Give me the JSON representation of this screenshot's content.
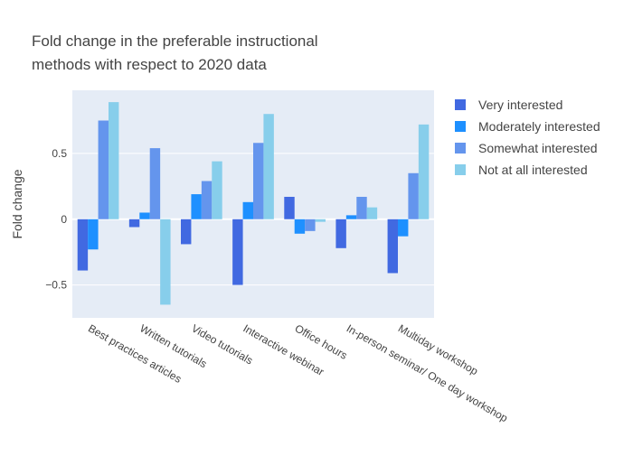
{
  "chart_data": {
    "type": "bar",
    "title_lines": [
      "Fold change in the preferable instructional",
      "methods with respect to 2020 data"
    ],
    "xlabel": "",
    "ylabel": "Fold change",
    "ylim": [
      -0.75,
      0.98
    ],
    "yticks": [
      -0.5,
      0,
      0.5
    ],
    "ytick_labels": [
      "−0.5",
      "0",
      "0.5"
    ],
    "grid": true,
    "legend_position": "top-right",
    "categories": [
      "Best practices articles",
      "Written tutorials",
      "Video tutorials",
      "Interactive webinar",
      "Office hours",
      "In-person seminar/ One day workshop",
      "Multiday workshop"
    ],
    "series": [
      {
        "name": "Very interested",
        "color": "#4169E1",
        "values": [
          -0.39,
          -0.06,
          -0.19,
          -0.5,
          0.17,
          -0.22,
          -0.41
        ]
      },
      {
        "name": "Moderately interested",
        "color": "#1E90FF",
        "values": [
          -0.23,
          0.05,
          0.19,
          0.13,
          -0.11,
          0.03,
          -0.13
        ]
      },
      {
        "name": "Somewhat interested",
        "color": "#6495ED",
        "values": [
          0.75,
          0.54,
          0.29,
          0.58,
          -0.09,
          0.17,
          0.35
        ]
      },
      {
        "name": "Not at all interested",
        "color": "#87CEEB",
        "values": [
          0.89,
          -0.65,
          0.44,
          0.8,
          -0.02,
          0.09,
          0.72
        ]
      }
    ]
  }
}
